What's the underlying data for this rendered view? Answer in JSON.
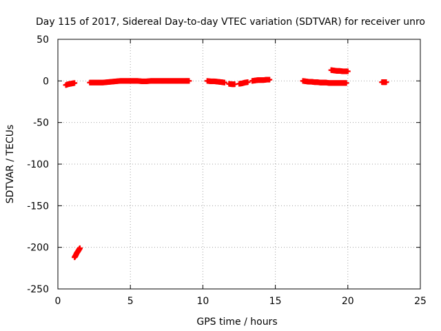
{
  "chart_data": {
    "type": "scatter",
    "title": "Day 115 of 2017, Sidereal Day-to-day VTEC variation (SDTVAR) for receiver unro",
    "xlabel": "GPS time / hours",
    "ylabel": "SDTVAR / TECUs",
    "xlim": [
      0,
      25
    ],
    "ylim": [
      -250,
      50
    ],
    "xticks": [
      0,
      5,
      10,
      15,
      20,
      25
    ],
    "yticks": [
      50,
      0,
      -50,
      -100,
      -150,
      -200,
      -250
    ],
    "grid": true,
    "marker": "plus",
    "series": [
      {
        "color": "#ff0000",
        "segments": [
          [
            [
              0.55,
              -5
            ],
            [
              0.7,
              -4
            ],
            [
              0.85,
              -3.5
            ],
            [
              1.0,
              -3
            ],
            [
              1.15,
              -2.5
            ]
          ],
          [
            [
              1.15,
              -212
            ],
            [
              1.22,
              -210
            ],
            [
              1.3,
              -207
            ],
            [
              1.38,
              -205
            ],
            [
              1.45,
              -203
            ],
            [
              1.52,
              -201
            ]
          ],
          [
            [
              2.2,
              -2
            ],
            [
              2.5,
              -2
            ],
            [
              2.8,
              -2
            ],
            [
              3.1,
              -2
            ],
            [
              3.4,
              -1.5
            ],
            [
              3.7,
              -1
            ],
            [
              4.0,
              -0.5
            ],
            [
              4.3,
              0
            ],
            [
              4.6,
              0
            ],
            [
              4.9,
              0
            ],
            [
              5.2,
              0
            ],
            [
              5.5,
              0
            ],
            [
              5.8,
              -0.5
            ],
            [
              6.1,
              -0.5
            ],
            [
              6.4,
              0
            ],
            [
              6.7,
              0
            ],
            [
              7.0,
              0
            ],
            [
              7.3,
              0
            ],
            [
              7.6,
              0
            ],
            [
              7.9,
              0
            ],
            [
              8.2,
              0
            ],
            [
              8.5,
              0
            ],
            [
              8.8,
              0
            ],
            [
              9.05,
              0
            ]
          ],
          [
            [
              10.3,
              0
            ],
            [
              10.55,
              -0.5
            ],
            [
              10.8,
              -0.5
            ],
            [
              11.05,
              -1
            ],
            [
              11.3,
              -1.5
            ],
            [
              11.5,
              -2
            ]
          ],
          [
            [
              11.8,
              -3.5
            ],
            [
              12.0,
              -4
            ],
            [
              12.2,
              -4
            ]
          ],
          [
            [
              12.5,
              -3.5
            ],
            [
              12.7,
              -3
            ],
            [
              12.9,
              -2
            ],
            [
              13.1,
              -1.5
            ]
          ],
          [
            [
              13.4,
              0
            ],
            [
              13.6,
              0.5
            ],
            [
              13.8,
              1
            ],
            [
              14.0,
              1
            ],
            [
              14.2,
              1
            ],
            [
              14.4,
              1.5
            ],
            [
              14.6,
              1.5
            ]
          ],
          [
            [
              16.9,
              0
            ],
            [
              17.1,
              -0.5
            ],
            [
              17.3,
              -1
            ],
            [
              17.5,
              -1
            ],
            [
              17.7,
              -1.5
            ],
            [
              17.9,
              -1.5
            ],
            [
              18.1,
              -2
            ],
            [
              18.3,
              -2
            ],
            [
              18.5,
              -2
            ],
            [
              18.7,
              -2.5
            ],
            [
              18.9,
              -2.5
            ],
            [
              19.1,
              -2.5
            ],
            [
              19.3,
              -2.5
            ],
            [
              19.5,
              -2.5
            ],
            [
              19.7,
              -2.5
            ],
            [
              19.9,
              -2.5
            ]
          ],
          [
            [
              18.85,
              13
            ],
            [
              19.05,
              12.5
            ],
            [
              19.25,
              12
            ],
            [
              19.45,
              12
            ],
            [
              19.65,
              11.5
            ],
            [
              19.85,
              11.5
            ],
            [
              20.0,
              11.5
            ]
          ],
          [
            [
              22.35,
              -1.5
            ],
            [
              22.5,
              -1.5
            ],
            [
              22.65,
              -1.5
            ]
          ]
        ]
      }
    ]
  }
}
